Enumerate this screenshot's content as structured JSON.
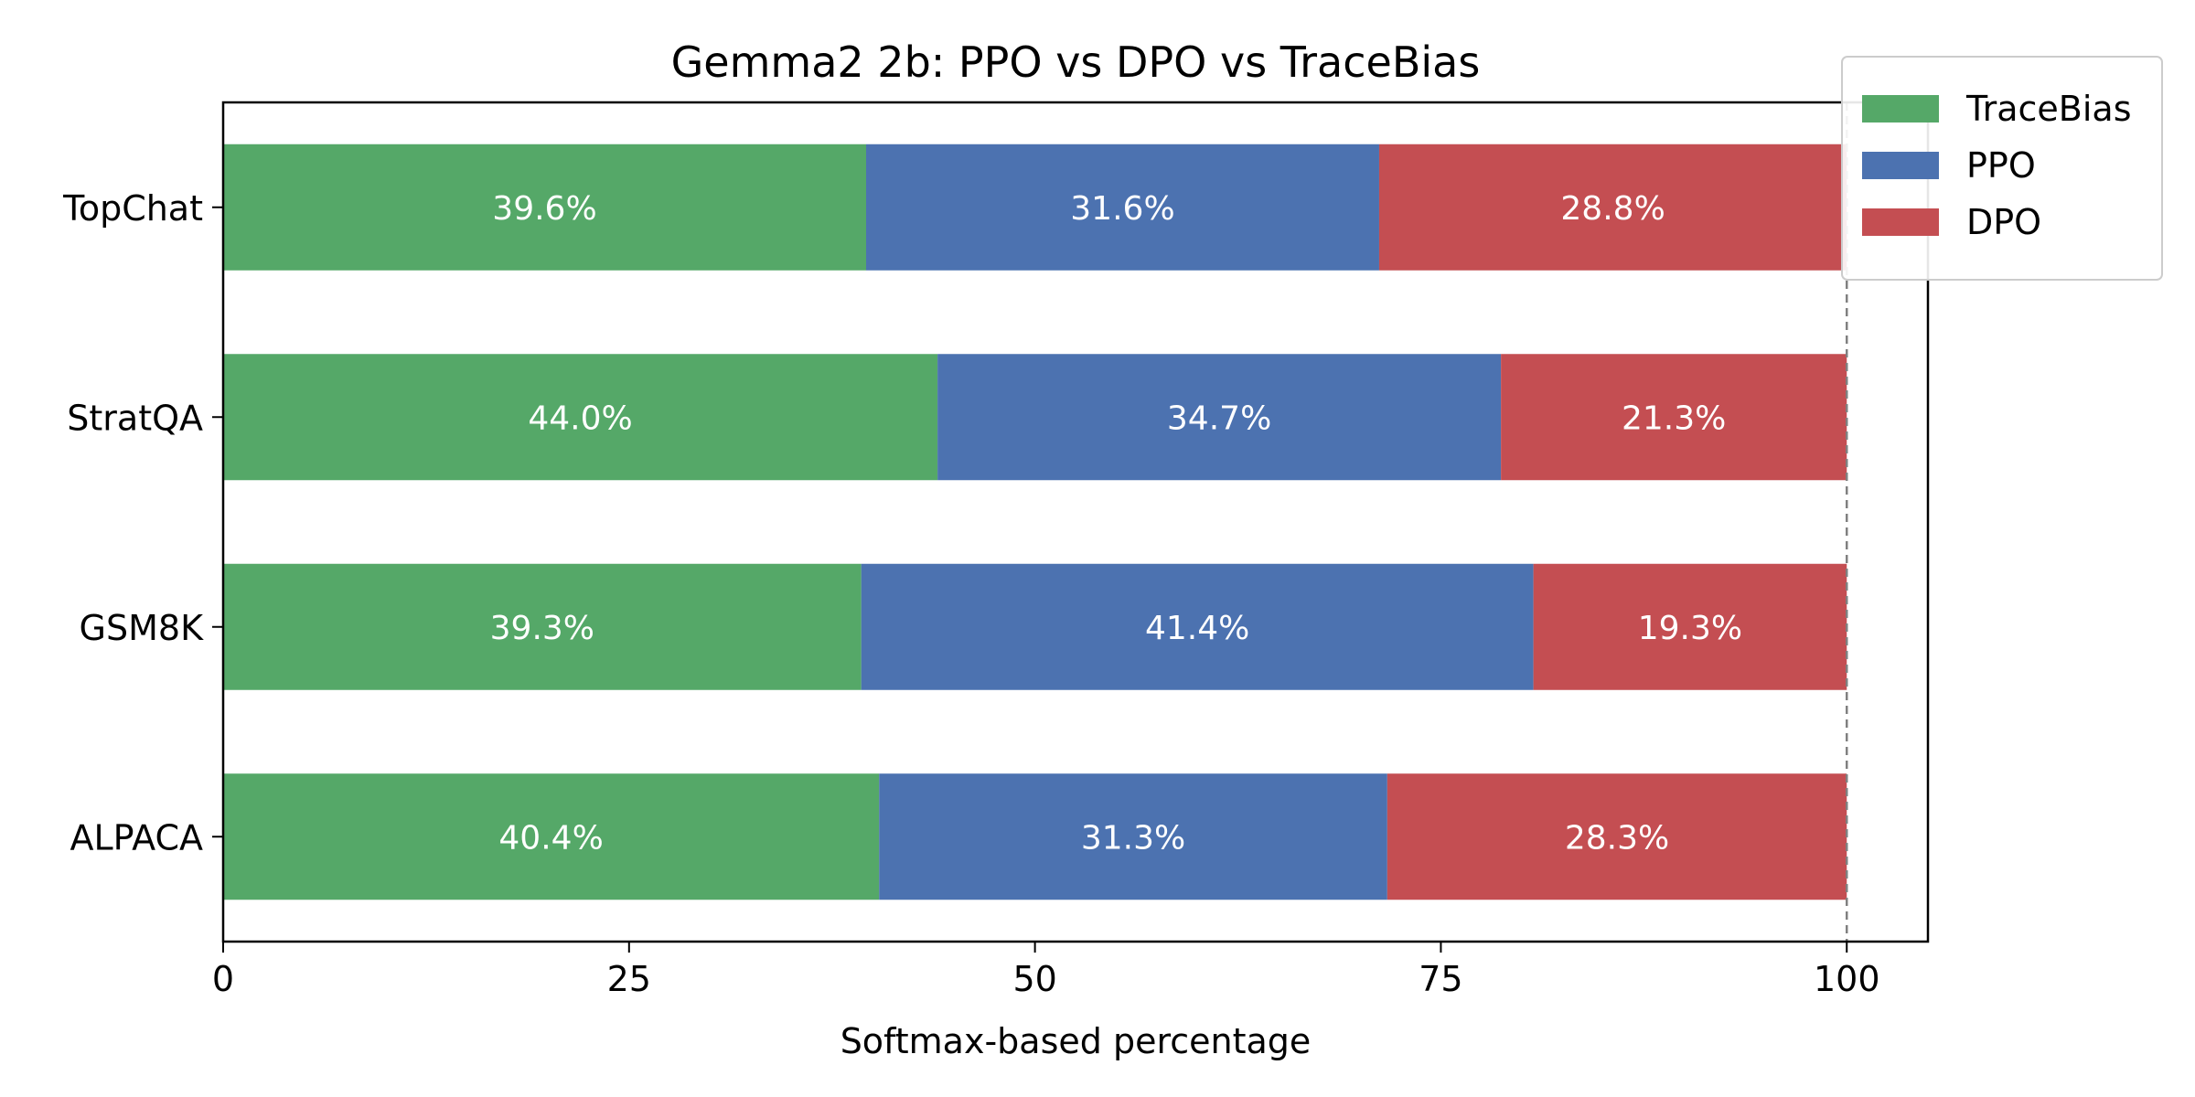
{
  "chart_data": {
    "type": "bar",
    "orientation": "horizontal",
    "stacked": true,
    "title": "Gemma2 2b: PPO vs DPO vs TraceBias",
    "xlabel": "Softmax-based percentage",
    "ylabel": "",
    "xlim": [
      0,
      105
    ],
    "xticks": [
      0,
      25,
      50,
      75,
      100
    ],
    "xtick_labels": [
      "0",
      "25",
      "50",
      "75",
      "100"
    ],
    "reference_line": 100,
    "grid": false,
    "legend_position": "top-right",
    "categories": [
      "TopChat",
      "StratQA",
      "GSM8K",
      "ALPACA"
    ],
    "series": [
      {
        "name": "TraceBias",
        "color": "#55a868",
        "values": [
          39.6,
          44.0,
          39.3,
          40.4
        ],
        "labels": [
          "39.6%",
          "44.0%",
          "39.3%",
          "40.4%"
        ]
      },
      {
        "name": "PPO",
        "color": "#4c72b0",
        "values": [
          31.6,
          34.7,
          41.4,
          31.3
        ],
        "labels": [
          "31.6%",
          "34.7%",
          "41.4%",
          "31.3%"
        ]
      },
      {
        "name": "DPO",
        "color": "#c44e52",
        "values": [
          28.8,
          21.3,
          19.3,
          28.3
        ],
        "labels": [
          "28.8%",
          "21.3%",
          "19.3%",
          "28.3%"
        ]
      }
    ]
  }
}
